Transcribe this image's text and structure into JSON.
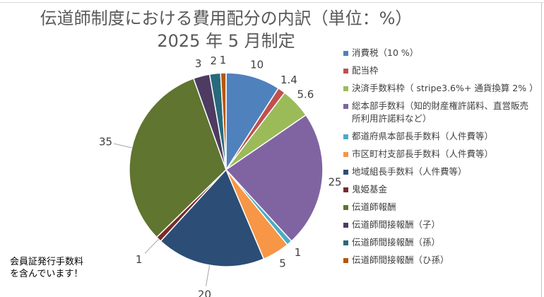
{
  "chart_data": {
    "type": "pie",
    "title": "伝道師制度における費用配分の内訳（単位：%）",
    "subtitle": "2025 年 5 月制定",
    "legend_position": "right",
    "slices": [
      {
        "name": "消費税（10 %）",
        "value": 10,
        "label": "10",
        "color": "#4f81bd"
      },
      {
        "name": "配当枠",
        "value": 1.4,
        "label": "1.4",
        "color": "#c0504d"
      },
      {
        "name": "決済手数料枠（ stripe3.6%+ 通貨換算 2% ）",
        "value": 5.6,
        "label": "5.6",
        "color": "#9bbb59"
      },
      {
        "name": "総本部手数料（知的財産権許諾料、直営販売所利用許諾料など）",
        "value": 25,
        "label": "25",
        "color": "#8064a2"
      },
      {
        "name": "都道府県本部長手数料（人件費等）",
        "value": 1,
        "label": "1",
        "color": "#4bacc6"
      },
      {
        "name": "市区町村支部長手数料（人件費等）",
        "value": 5,
        "label": "5",
        "color": "#f79646"
      },
      {
        "name": "地域組長手数料（人件費等）",
        "value": 20,
        "label": "20",
        "color": "#2c4d75"
      },
      {
        "name": "鬼姫基金",
        "value": 1,
        "label": "1",
        "color": "#772c2a"
      },
      {
        "name": "伝道師報酬",
        "value": 35,
        "label": "35",
        "color": "#5f7530"
      },
      {
        "name": "伝道師間接報酬（子）",
        "value": 3,
        "label": "3",
        "color": "#4d3b62"
      },
      {
        "name": "伝道師間接報酬（孫）",
        "value": 2,
        "label": "2",
        "color": "#276a7c"
      },
      {
        "name": "伝道師間接報酬（ひ孫）",
        "value": 1,
        "label": "1",
        "color": "#b65708"
      }
    ]
  },
  "annotation": "会員証発行手数料を含んでいます！"
}
